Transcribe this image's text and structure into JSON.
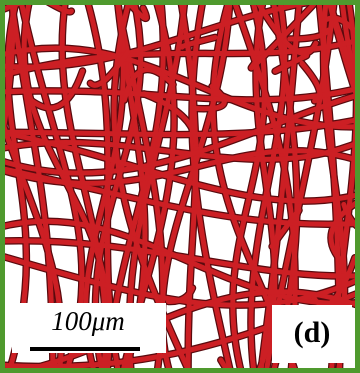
{
  "scale_bar": {
    "label": "100μm"
  },
  "panel_label": "(d)"
}
